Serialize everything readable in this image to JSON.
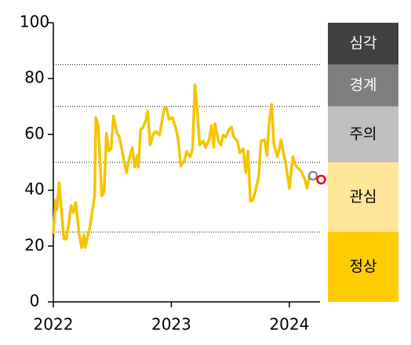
{
  "chart_data": {
    "type": "line",
    "xlim": [
      2022,
      2024.26
    ],
    "xticks": [
      2022,
      2023,
      2024
    ],
    "ylim": [
      0,
      100
    ],
    "yticks": [
      0,
      20,
      40,
      60,
      80,
      100
    ],
    "series": [
      {
        "color": "#f5c400",
        "x": [
          2022.0,
          2022.02,
          2022.03,
          2022.05,
          2022.07,
          2022.09,
          2022.11,
          2022.13,
          2022.15,
          2022.17,
          2022.19,
          2022.22,
          2022.24,
          2022.26,
          2022.27,
          2022.31,
          2022.35,
          2022.36,
          2022.38,
          2022.41,
          2022.43,
          2022.45,
          2022.47,
          2022.49,
          2022.51,
          2022.54,
          2022.56,
          2022.59,
          2022.62,
          2022.64,
          2022.67,
          2022.69,
          2022.71,
          2022.72,
          2022.74,
          2022.76,
          2022.78,
          2022.8,
          2022.82,
          2022.85,
          2022.87,
          2022.9,
          2022.92,
          2022.94,
          2022.96,
          2022.98,
          2023.01,
          2023.04,
          2023.06,
          2023.08,
          2023.11,
          2023.13,
          2023.16,
          2023.18,
          2023.2,
          2023.22,
          2023.24,
          2023.27,
          2023.29,
          2023.32,
          2023.34,
          2023.36,
          2023.37,
          2023.4,
          2023.42,
          2023.44,
          2023.46,
          2023.49,
          2023.51,
          2023.53,
          2023.56,
          2023.58,
          2023.61,
          2023.63,
          2023.65,
          2023.67,
          2023.69,
          2023.71,
          2023.74,
          2023.76,
          2023.79,
          2023.81,
          2023.83,
          2023.85,
          2023.87,
          2023.9,
          2023.93,
          2023.95,
          2023.97,
          2024.0,
          2024.03,
          2024.05,
          2024.07,
          2024.1,
          2024.13,
          2024.15,
          2024.17
        ],
        "values": [
          24.4,
          36.5,
          33,
          42.7,
          32,
          22.5,
          22.5,
          28,
          34.5,
          32,
          35.7,
          24,
          19.4,
          24,
          19.4,
          26.7,
          38,
          66,
          63.2,
          38,
          39.3,
          60.4,
          54,
          54.8,
          66.6,
          60.4,
          59,
          52.5,
          46.3,
          50.6,
          55.3,
          48.3,
          52.5,
          48.3,
          61.8,
          62.4,
          64.6,
          68.3,
          56.2,
          60.4,
          61,
          59.8,
          64.6,
          69.4,
          69.4,
          65.4,
          66,
          61.8,
          57.6,
          48.6,
          50.6,
          53.9,
          52,
          54.8,
          77.8,
          68.8,
          56.2,
          57.6,
          55.3,
          58.1,
          63.2,
          55.3,
          63.8,
          57.6,
          56.2,
          59.8,
          59,
          61.8,
          62.6,
          59,
          57.6,
          53.4,
          54.8,
          46.3,
          54,
          36,
          36.5,
          39.3,
          45,
          57.6,
          58.1,
          52.5,
          64.6,
          70.8,
          56.2,
          52,
          58.1,
          53.4,
          49.2,
          40.7,
          52,
          49.2,
          48,
          46.9,
          44.1,
          40.7,
          45
        ]
      }
    ],
    "points": [
      {
        "x": 2024.2,
        "y": 45.2,
        "color": "#8c8c8c"
      },
      {
        "x": 2024.27,
        "y": 43.8,
        "color": "#e60012"
      }
    ],
    "bands": [
      {
        "label": "심각",
        "from": 85,
        "to": 100,
        "color": "#404040",
        "text_color": "#ffffff"
      },
      {
        "label": "경계",
        "from": 70,
        "to": 85,
        "color": "#7f7f7f",
        "text_color": "#ffffff"
      },
      {
        "label": "주의",
        "from": 50,
        "to": 70,
        "color": "#bfbfbf",
        "text_color": "#000000"
      },
      {
        "label": "관심",
        "from": 25,
        "to": 50,
        "color": "#ffe699",
        "text_color": "#000000"
      },
      {
        "label": "정상",
        "from": 0,
        "to": 25,
        "color": "#ffcc00",
        "text_color": "#000000"
      }
    ]
  }
}
